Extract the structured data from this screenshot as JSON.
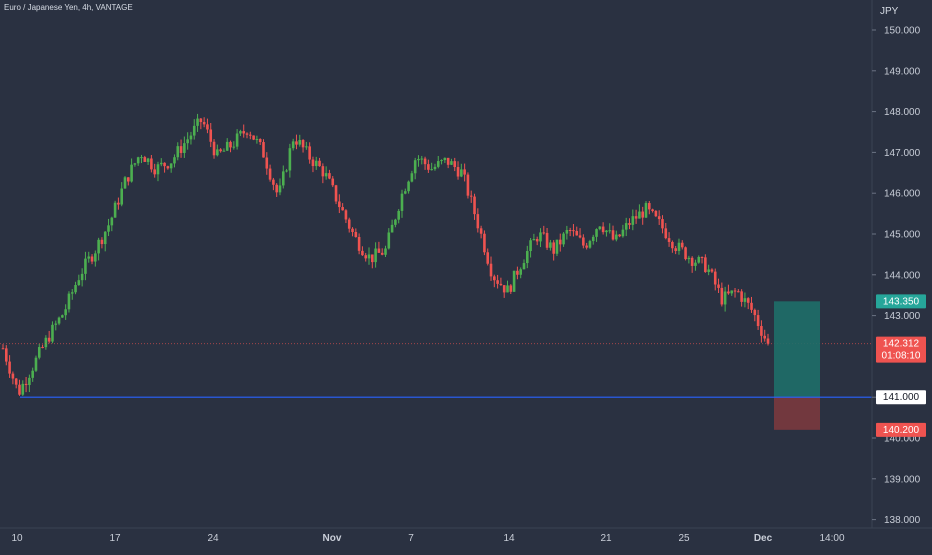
{
  "header": {
    "symbol_info": "Euro / Japanese Yen, 4h, VANTAGE"
  },
  "price_axis": {
    "currency": "JPY",
    "ticks": [
      "150.000",
      "149.000",
      "148.000",
      "147.000",
      "146.000",
      "145.000",
      "144.000",
      "143.000",
      "141.000",
      "140.000",
      "139.000",
      "138.000"
    ]
  },
  "time_axis": {
    "ticks": [
      "10",
      "17",
      "24",
      "Nov",
      "7",
      "14",
      "21",
      "25",
      "Dec",
      "14:00"
    ]
  },
  "badges": {
    "take_profit": "143.350",
    "current_price": "142.312",
    "countdown": "01:08:10",
    "entry": "141.000",
    "stop_loss": "140.200"
  },
  "colors": {
    "background": "#2a3141",
    "bull": "#26a69a",
    "bull_candle": "#4caf50",
    "bear": "#ef5350",
    "entry_line": "#2962ff",
    "profit_zone": "#1e6f69",
    "loss_zone": "#7a3a3e"
  },
  "chart_data": {
    "type": "candlestick",
    "timeframe": "4h",
    "y_unit": "JPY",
    "ylim": [
      137.8,
      150.6
    ],
    "current_price": 142.312,
    "position": {
      "entry": 141.0,
      "take_profit": 143.35,
      "stop_loss": 140.2
    },
    "path": [
      {
        "t": "Oct 10",
        "close": 142.2
      },
      {
        "t": "Oct 11",
        "close": 141.1
      },
      {
        "t": "Oct 12",
        "close": 141.8
      },
      {
        "t": "Oct 13",
        "close": 142.5
      },
      {
        "t": "Oct 14",
        "close": 143.1
      },
      {
        "t": "Oct 15",
        "close": 144.0
      },
      {
        "t": "Oct 16",
        "close": 144.6
      },
      {
        "t": "Oct 17",
        "close": 145.3
      },
      {
        "t": "Oct 18",
        "close": 146.3
      },
      {
        "t": "Oct 19",
        "close": 147.0
      },
      {
        "t": "Oct 20",
        "close": 146.6
      },
      {
        "t": "Oct 21",
        "close": 146.8
      },
      {
        "t": "Oct 22",
        "close": 147.3
      },
      {
        "t": "Oct 23",
        "close": 147.8
      },
      {
        "t": "Oct 24",
        "close": 146.9
      },
      {
        "t": "Oct 25",
        "close": 147.2
      },
      {
        "t": "Oct 26",
        "close": 147.6
      },
      {
        "t": "Oct 27",
        "close": 147.0
      },
      {
        "t": "Oct 28",
        "close": 145.9
      },
      {
        "t": "Oct 30",
        "close": 147.4
      },
      {
        "t": "Oct 31",
        "close": 146.9
      },
      {
        "t": "Nov 1",
        "close": 146.5
      },
      {
        "t": "Nov 2",
        "close": 145.7
      },
      {
        "t": "Nov 3",
        "close": 144.9
      },
      {
        "t": "Nov 4",
        "close": 144.4
      },
      {
        "t": "Nov 5",
        "close": 144.6
      },
      {
        "t": "Nov 6",
        "close": 145.9
      },
      {
        "t": "Nov 7",
        "close": 146.9
      },
      {
        "t": "Nov 8",
        "close": 146.6
      },
      {
        "t": "Nov 9",
        "close": 146.8
      },
      {
        "t": "Nov 10",
        "close": 146.5
      },
      {
        "t": "Nov 11",
        "close": 145.3
      },
      {
        "t": "Nov 12",
        "close": 144.0
      },
      {
        "t": "Nov 13",
        "close": 143.6
      },
      {
        "t": "Nov 14",
        "close": 144.4
      },
      {
        "t": "Nov 15",
        "close": 145.0
      },
      {
        "t": "Nov 16",
        "close": 144.6
      },
      {
        "t": "Nov 17",
        "close": 145.1
      },
      {
        "t": "Nov 18",
        "close": 144.7
      },
      {
        "t": "Nov 20",
        "close": 145.3
      },
      {
        "t": "Nov 21",
        "close": 144.8
      },
      {
        "t": "Nov 22",
        "close": 145.3
      },
      {
        "t": "Nov 23",
        "close": 145.6
      },
      {
        "t": "Nov 24",
        "close": 145.2
      },
      {
        "t": "Nov 25",
        "close": 144.7
      },
      {
        "t": "Nov 26",
        "close": 144.4
      },
      {
        "t": "Nov 27",
        "close": 144.2
      },
      {
        "t": "Nov 28",
        "close": 143.4
      },
      {
        "t": "Nov 29",
        "close": 143.6
      },
      {
        "t": "Nov 30",
        "close": 143.1
      },
      {
        "t": "Dec 1",
        "close": 142.3
      }
    ]
  }
}
